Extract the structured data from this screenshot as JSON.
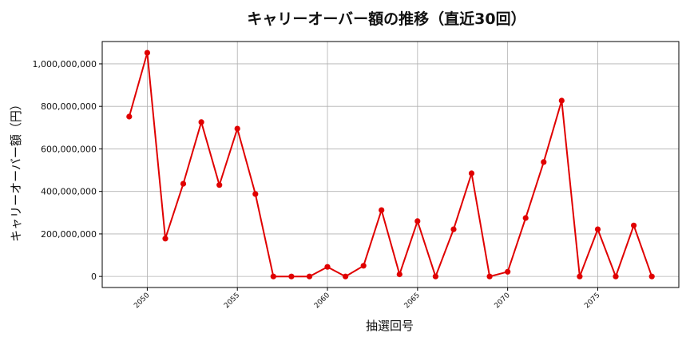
{
  "chart_data": {
    "type": "line",
    "title": "キャリーオーバー額の推移（直近30回）",
    "xlabel": "抽選回号",
    "ylabel": "キャリーオーバー額（円）",
    "x": [
      2049,
      2050,
      2051,
      2052,
      2053,
      2054,
      2055,
      2056,
      2057,
      2058,
      2059,
      2060,
      2061,
      2062,
      2063,
      2064,
      2065,
      2066,
      2067,
      2068,
      2069,
      2070,
      2071,
      2072,
      2073,
      2074,
      2075,
      2076,
      2077,
      2078
    ],
    "series": [
      {
        "color": "#e00000",
        "values": [
          752000000,
          1052000000,
          178000000,
          436000000,
          726000000,
          430000000,
          695000000,
          388000000,
          0,
          0,
          0,
          45000000,
          0,
          50000000,
          312000000,
          10000000,
          260000000,
          0,
          222000000,
          485000000,
          0,
          22000000,
          275000000,
          538000000,
          827000000,
          0,
          222000000,
          0,
          240000000,
          0
        ]
      }
    ],
    "xticks": [
      2050,
      2055,
      2060,
      2065,
      2070,
      2075
    ],
    "yticks": [
      0,
      200000000,
      400000000,
      600000000,
      800000000,
      1000000000
    ],
    "ytick_labels": [
      "0",
      "200,000,000",
      "400,000,000",
      "600,000,000",
      "800,000,000",
      "1,000,000,000"
    ],
    "xlim": [
      2047.5,
      2079.5
    ],
    "ylim": [
      -52000000,
      1105000000
    ],
    "grid": true,
    "legend": "none"
  }
}
